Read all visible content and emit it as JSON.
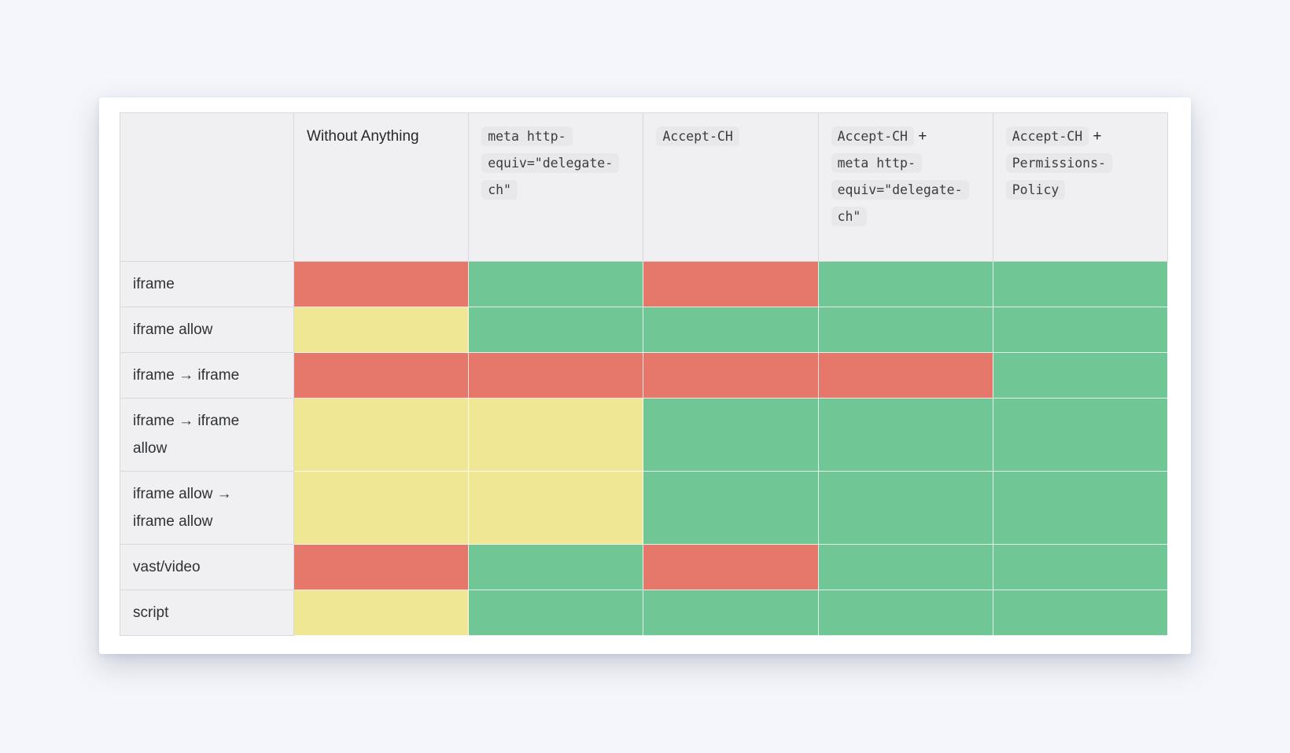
{
  "page": {
    "background": "#f5f6fb"
  },
  "card": {
    "background": "#ffffff"
  },
  "table": {
    "status_colors": {
      "pass": "#70c795",
      "partial": "#f0e795",
      "fail": "#e5786b"
    },
    "columns": [
      {
        "parts": []
      },
      {
        "parts": [
          {
            "plain": "Without Anything"
          }
        ]
      },
      {
        "parts": [
          {
            "code": "meta http-equiv=\"delegate-ch\""
          }
        ]
      },
      {
        "parts": [
          {
            "code": "Accept-CH"
          }
        ]
      },
      {
        "parts": [
          {
            "code": "Accept-CH"
          },
          {
            "plain": " +"
          },
          {
            "break": true
          },
          {
            "code": "meta http-equiv=\"delegate-ch\""
          }
        ]
      },
      {
        "parts": [
          {
            "code": "Accept-CH"
          },
          {
            "plain": " +"
          },
          {
            "break": true
          },
          {
            "code": "Permissions-Policy"
          }
        ]
      }
    ],
    "rows": [
      {
        "label": "iframe",
        "cells": [
          "fail",
          "pass",
          "fail",
          "pass",
          "pass"
        ]
      },
      {
        "label": "iframe allow",
        "cells": [
          "partial",
          "pass",
          "pass",
          "pass",
          "pass"
        ]
      },
      {
        "label": "iframe → iframe",
        "cells": [
          "fail",
          "fail",
          "fail",
          "fail",
          "pass"
        ]
      },
      {
        "label": "iframe → iframe allow",
        "cells": [
          "partial",
          "partial",
          "pass",
          "pass",
          "pass"
        ]
      },
      {
        "label": "iframe allow → iframe allow",
        "cells": [
          "partial",
          "partial",
          "pass",
          "pass",
          "pass"
        ]
      },
      {
        "label": "vast/video",
        "cells": [
          "fail",
          "pass",
          "fail",
          "pass",
          "pass"
        ]
      },
      {
        "label": "script",
        "cells": [
          "partial",
          "pass",
          "pass",
          "pass",
          "pass"
        ]
      }
    ]
  }
}
